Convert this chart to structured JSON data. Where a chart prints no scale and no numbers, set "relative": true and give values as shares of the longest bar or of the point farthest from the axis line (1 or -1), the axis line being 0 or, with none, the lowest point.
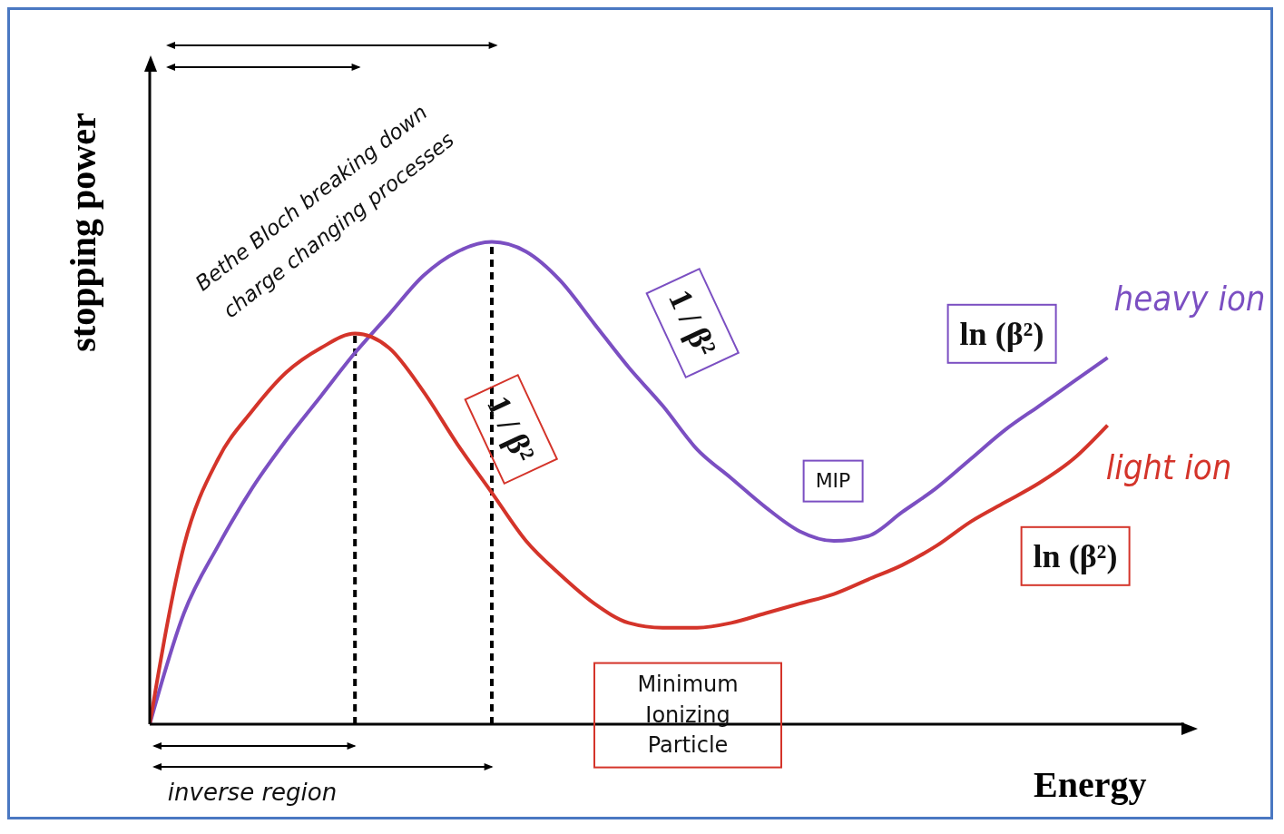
{
  "chart_data": {
    "type": "line",
    "relative": true,
    "xlabel": "Energy",
    "ylabel": "stopping power",
    "categories": [
      null,
      null,
      null,
      null,
      null,
      null,
      null,
      null,
      null,
      null,
      null,
      null,
      null,
      null,
      null,
      null,
      null,
      null,
      null,
      null,
      null,
      null,
      null,
      null,
      null,
      null,
      null,
      null,
      null
    ],
    "series": [
      {
        "name": "heavy ion",
        "color": "#7b4fc2",
        "values": [
          0,
          0.23,
          0.37,
          0.49,
          0.59,
          0.68,
          0.77,
          0.85,
          0.93,
          0.98,
          1,
          0.98,
          0.92,
          0.83,
          0.74,
          0.66,
          0.57,
          0.51,
          0.45,
          0.4,
          0.38,
          0.39,
          0.44,
          0.49,
          0.55,
          0.61,
          0.66,
          0.71,
          0.76
        ]
      },
      {
        "name": "light ion",
        "color": "#d4342a",
        "values": [
          0,
          0.37,
          0.55,
          0.65,
          0.73,
          0.78,
          0.81,
          0.78,
          0.69,
          0.58,
          0.48,
          0.38,
          0.31,
          0.25,
          0.21,
          0.2,
          0.2,
          0.21,
          0.23,
          0.25,
          0.27,
          0.3,
          0.33,
          0.37,
          0.42,
          0.46,
          0.5,
          0.55,
          0.62
        ]
      }
    ],
    "annotations": [
      "Bethe Bloch breaking down",
      "charge changing processes",
      "inverse region",
      "1 / β²",
      "1 / β²",
      "MIP",
      "ln (β²)",
      "ln (β²)",
      "Minimum Ionizing Particle"
    ],
    "legend": false,
    "grid": false,
    "marker": "none",
    "line_style": "solid"
  }
}
